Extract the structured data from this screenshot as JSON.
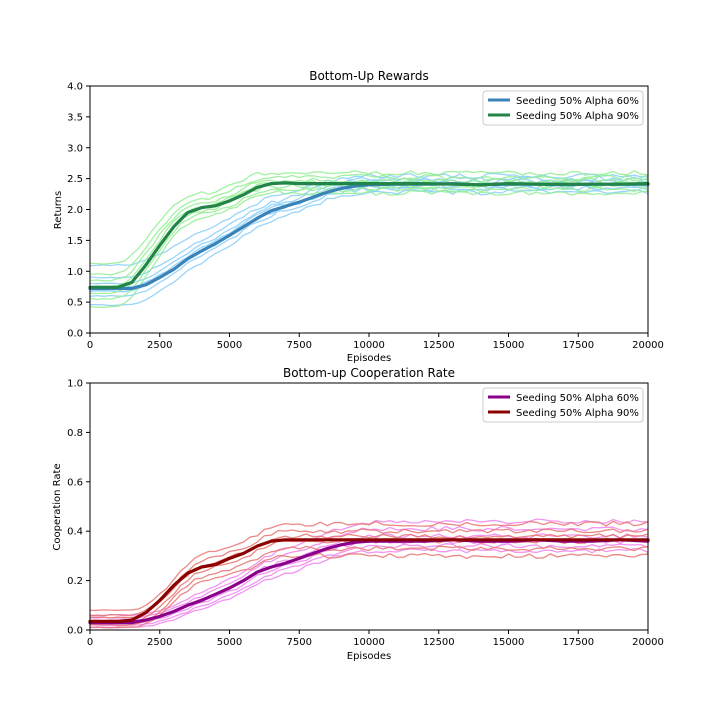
{
  "chart_data": [
    {
      "type": "line",
      "title": "Bottom-Up Rewards",
      "xlabel": "Episodes",
      "ylabel": "Returns",
      "xlim": [
        0,
        20000
      ],
      "ylim": [
        0,
        4.0
      ],
      "xticks": [
        0,
        2500,
        5000,
        7500,
        10000,
        12500,
        15000,
        17500,
        20000
      ],
      "yticks": [
        0.0,
        0.5,
        1.0,
        1.5,
        2.0,
        2.5,
        3.0,
        3.5,
        4.0
      ],
      "ytick_labels": [
        "0.0",
        "0.5",
        "1.0",
        "1.5",
        "2.0",
        "2.5",
        "3.0",
        "3.5",
        "4.0"
      ],
      "grid": false,
      "legend_position": "upper right",
      "series": [
        {
          "name": "Seeding 50% Alpha 60%",
          "color": "#3a83b8",
          "seed_color": "#87cefa",
          "x": [
            0,
            1500,
            2000,
            2500,
            3000,
            3500,
            4000,
            4500,
            5000,
            5500,
            6000,
            6500,
            7000,
            7500,
            8000,
            8500,
            9000,
            9500,
            10000,
            11000,
            12000,
            13000,
            14000,
            15000,
            16000,
            17000,
            18000,
            19000,
            20000
          ],
          "values": [
            0.72,
            0.72,
            0.78,
            0.9,
            1.03,
            1.2,
            1.33,
            1.45,
            1.58,
            1.72,
            1.86,
            1.98,
            2.05,
            2.12,
            2.2,
            2.28,
            2.34,
            2.38,
            2.4,
            2.41,
            2.41,
            2.42,
            2.4,
            2.41,
            2.41,
            2.4,
            2.41,
            2.41,
            2.41
          ],
          "seed_starts": [
            0.45,
            0.6,
            0.68,
            0.74,
            0.8,
            0.9,
            1.1
          ],
          "seed_ends": [
            2.28,
            2.34,
            2.38,
            2.42,
            2.46,
            2.5,
            2.55
          ]
        },
        {
          "name": "Seeding 50% Alpha 90%",
          "color": "#23844a",
          "seed_color": "#90ee90",
          "x": [
            0,
            1000,
            1500,
            2000,
            2500,
            3000,
            3500,
            4000,
            4500,
            5000,
            5500,
            6000,
            6500,
            7000,
            7500,
            8000,
            9000,
            10000,
            11000,
            12000,
            13000,
            14000,
            15000,
            16000,
            17000,
            18000,
            19000,
            20000
          ],
          "values": [
            0.74,
            0.74,
            0.82,
            1.1,
            1.42,
            1.72,
            1.95,
            2.03,
            2.06,
            2.14,
            2.24,
            2.36,
            2.42,
            2.43,
            2.42,
            2.42,
            2.42,
            2.42,
            2.42,
            2.42,
            2.41,
            2.4,
            2.42,
            2.41,
            2.41,
            2.41,
            2.41,
            2.42
          ],
          "seed_starts": [
            0.42,
            0.55,
            0.65,
            0.75,
            0.85,
            0.95,
            1.12
          ],
          "seed_ends": [
            2.27,
            2.33,
            2.38,
            2.43,
            2.48,
            2.53,
            2.6
          ]
        }
      ]
    },
    {
      "type": "line",
      "title": "Bottom-up Cooperation Rate",
      "xlabel": "Episodes",
      "ylabel": "Cooperation Rate",
      "xlim": [
        0,
        20000
      ],
      "ylim": [
        0,
        1.0
      ],
      "xticks": [
        0,
        2500,
        5000,
        7500,
        10000,
        12500,
        15000,
        17500,
        20000
      ],
      "yticks": [
        0.0,
        0.2,
        0.4,
        0.6,
        0.8,
        1.0
      ],
      "ytick_labels": [
        "0.0",
        "0.2",
        "0.4",
        "0.6",
        "0.8",
        "1.0"
      ],
      "grid": false,
      "legend_position": "upper right",
      "series": [
        {
          "name": "Seeding 50% Alpha 60%",
          "color": "#8b008b",
          "seed_color": "#ee82ee",
          "x": [
            0,
            1500,
            2000,
            2500,
            3000,
            3500,
            4000,
            4500,
            5000,
            5500,
            6000,
            6500,
            7000,
            7500,
            8000,
            8500,
            9000,
            9500,
            10000,
            11000,
            12000,
            13000,
            14000,
            15000,
            16000,
            17000,
            18000,
            19000,
            20000
          ],
          "values": [
            0.03,
            0.03,
            0.04,
            0.055,
            0.075,
            0.1,
            0.12,
            0.145,
            0.17,
            0.2,
            0.235,
            0.255,
            0.27,
            0.29,
            0.31,
            0.33,
            0.345,
            0.355,
            0.36,
            0.36,
            0.36,
            0.365,
            0.36,
            0.36,
            0.365,
            0.36,
            0.36,
            0.365,
            0.36
          ],
          "seed_starts": [
            0.01,
            0.02,
            0.03,
            0.04,
            0.05,
            0.06
          ],
          "seed_ends": [
            0.32,
            0.34,
            0.36,
            0.38,
            0.41,
            0.44
          ]
        },
        {
          "name": "Seeding 50% Alpha 90%",
          "color": "#8b0000",
          "seed_color": "#e8736f",
          "x": [
            0,
            1000,
            1500,
            2000,
            2500,
            3000,
            3500,
            4000,
            4500,
            5000,
            5500,
            6000,
            6500,
            7000,
            7500,
            8000,
            9000,
            10000,
            11000,
            12000,
            13000,
            14000,
            15000,
            16000,
            17000,
            18000,
            19000,
            20000
          ],
          "values": [
            0.035,
            0.035,
            0.04,
            0.07,
            0.12,
            0.18,
            0.23,
            0.255,
            0.265,
            0.29,
            0.31,
            0.34,
            0.36,
            0.365,
            0.365,
            0.365,
            0.365,
            0.365,
            0.365,
            0.365,
            0.365,
            0.365,
            0.365,
            0.365,
            0.365,
            0.365,
            0.365,
            0.365
          ],
          "seed_starts": [
            0.01,
            0.02,
            0.03,
            0.05,
            0.06,
            0.08
          ],
          "seed_ends": [
            0.3,
            0.33,
            0.36,
            0.38,
            0.4,
            0.43
          ]
        }
      ]
    }
  ]
}
